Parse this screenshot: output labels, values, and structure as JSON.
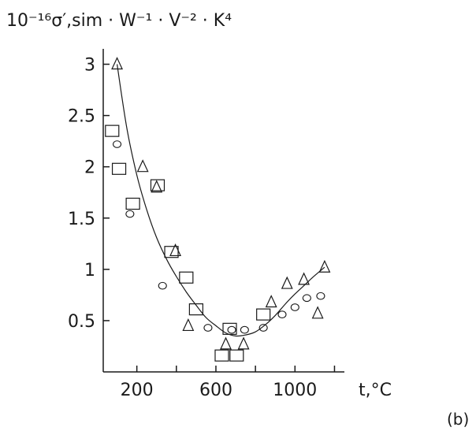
{
  "chart_data": {
    "type": "scatter",
    "ylabel": "10⁻¹⁶σ′,sim · W⁻¹ · V⁻² · K⁴",
    "xlabel": "t,°C",
    "panel_label": "(b)",
    "xlim": [
      30,
      1250
    ],
    "ylim": [
      0,
      3.15
    ],
    "x_ticks": [
      200,
      600,
      1000
    ],
    "x_tick_labels": [
      "200",
      "600",
      "1000"
    ],
    "x_minor_ticks": [
      400,
      800,
      1200
    ],
    "y_ticks": [
      0.5,
      1,
      1.5,
      2,
      2.5,
      3
    ],
    "y_tick_labels": [
      "0.5",
      "1",
      "1.5",
      "2",
      "2.5",
      "3"
    ],
    "series": [
      {
        "marker": "triangle",
        "points": [
          [
            100,
            3.0
          ],
          [
            230,
            2.0
          ],
          [
            300,
            1.8
          ],
          [
            395,
            1.18
          ],
          [
            460,
            0.45
          ],
          [
            650,
            0.27
          ],
          [
            740,
            0.27
          ],
          [
            880,
            0.68
          ],
          [
            960,
            0.86
          ],
          [
            1045,
            0.9
          ],
          [
            1115,
            0.57
          ],
          [
            1150,
            1.02
          ]
        ]
      },
      {
        "marker": "square",
        "points": [
          [
            75,
            2.35
          ],
          [
            110,
            1.98
          ],
          [
            180,
            1.64
          ],
          [
            305,
            1.82
          ],
          [
            375,
            1.17
          ],
          [
            450,
            0.92
          ],
          [
            500,
            0.61
          ],
          [
            630,
            0.16
          ],
          [
            670,
            0.42
          ],
          [
            705,
            0.16
          ],
          [
            840,
            0.56
          ]
        ]
      },
      {
        "marker": "circle",
        "points": [
          [
            100,
            2.22
          ],
          [
            165,
            1.54
          ],
          [
            330,
            0.84
          ],
          [
            560,
            0.43
          ],
          [
            680,
            0.41
          ],
          [
            745,
            0.41
          ],
          [
            840,
            0.43
          ],
          [
            935,
            0.56
          ],
          [
            1000,
            0.63
          ],
          [
            1060,
            0.72
          ],
          [
            1130,
            0.74
          ]
        ]
      },
      {
        "marker": "line",
        "points": [
          [
            100,
            3.0
          ],
          [
            150,
            2.37
          ],
          [
            200,
            1.92
          ],
          [
            250,
            1.58
          ],
          [
            300,
            1.31
          ],
          [
            350,
            1.1
          ],
          [
            400,
            0.93
          ],
          [
            450,
            0.78
          ],
          [
            500,
            0.65
          ],
          [
            550,
            0.53
          ],
          [
            600,
            0.45
          ],
          [
            650,
            0.38
          ],
          [
            700,
            0.35
          ],
          [
            750,
            0.36
          ],
          [
            800,
            0.39
          ],
          [
            850,
            0.46
          ],
          [
            900,
            0.55
          ],
          [
            950,
            0.66
          ],
          [
            1000,
            0.76
          ],
          [
            1050,
            0.85
          ],
          [
            1100,
            0.94
          ],
          [
            1150,
            1.02
          ]
        ]
      }
    ]
  }
}
